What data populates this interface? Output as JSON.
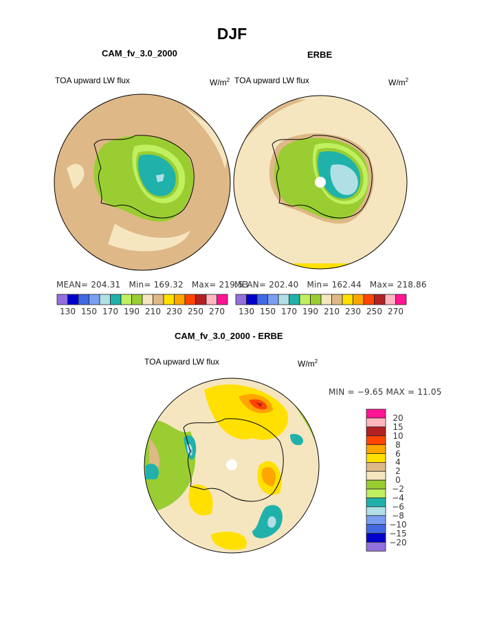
{
  "title": "DJF",
  "panels": [
    {
      "title": "CAM_fv_3.0_2000",
      "variable": "TOA upward LW flux",
      "units": "W/m",
      "units_sup": "2",
      "stats": {
        "mean": "MEAN= 204.31",
        "min": "Min= 169.32",
        "max": "Max= 219.53"
      }
    },
    {
      "title": "ERBE",
      "variable": "TOA upward LW flux",
      "units": "W/m",
      "units_sup": "2",
      "stats": {
        "mean": "MEAN= 202.40",
        "min": "Min= 162.44",
        "max": "Max= 218.86"
      }
    }
  ],
  "diff": {
    "title": "CAM_fv_3.0_2000 - ERBE",
    "variable": "TOA upward LW flux",
    "units": "W/m",
    "units_sup": "2",
    "minmax": "MIN =  −9.65 MAX =  11.05"
  },
  "chart_data": [
    {
      "type": "heatmap",
      "projection": "south polar stereographic",
      "title": "CAM_fv_3.0_2000",
      "levels": [
        130,
        140,
        150,
        160,
        170,
        180,
        190,
        200,
        210,
        220,
        230,
        240,
        250,
        260,
        270
      ],
      "tick_labels": [
        "130",
        "150",
        "170",
        "190",
        "210",
        "230",
        "250",
        "270"
      ]
    },
    {
      "type": "heatmap",
      "projection": "south polar stereographic",
      "title": "ERBE",
      "levels": [
        130,
        140,
        150,
        160,
        170,
        180,
        190,
        200,
        210,
        220,
        230,
        240,
        250,
        260,
        270
      ],
      "tick_labels": [
        "130",
        "150",
        "170",
        "190",
        "210",
        "230",
        "250",
        "270"
      ]
    },
    {
      "type": "heatmap",
      "projection": "south polar stereographic",
      "title": "CAM_fv_3.0_2000 - ERBE",
      "levels": [
        -20,
        -15,
        -10,
        -8,
        -6,
        -4,
        -2,
        0,
        2,
        4,
        6,
        8,
        10,
        15,
        20
      ],
      "tick_labels": [
        "20",
        "15",
        "10",
        "8",
        "6",
        "4",
        "2",
        "0",
        "−2",
        "−4",
        "−6",
        "−8",
        "−10",
        "−15",
        "−20"
      ]
    }
  ],
  "colors": [
    "#9370DB",
    "#0000CD",
    "#4169E1",
    "#7A9EF0",
    "#B0E0E6",
    "#20B2AA",
    "#C0F060",
    "#9ACD32",
    "#F5E6C0",
    "#DEB887",
    "#FFE000",
    "#FFA500",
    "#FF4500",
    "#B22222",
    "#FFB6C1",
    "#FF1493"
  ]
}
